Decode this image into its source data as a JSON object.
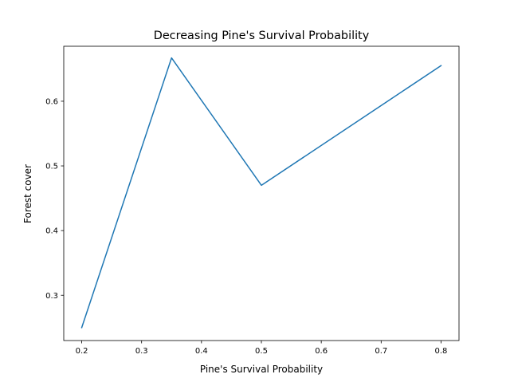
{
  "chart_data": {
    "type": "line",
    "title": "Decreasing Pine's Survival Probability",
    "xlabel": "Pine's Survival Probability",
    "ylabel": "Forest cover",
    "xlim": [
      0.17,
      0.83
    ],
    "ylim": [
      0.23,
      0.685
    ],
    "xticks": [
      0.2,
      0.3,
      0.4,
      0.5,
      0.6,
      0.7,
      0.8
    ],
    "xtick_labels": [
      "0.2",
      "0.3",
      "0.4",
      "0.5",
      "0.6",
      "0.7",
      "0.8"
    ],
    "yticks": [
      0.3,
      0.4,
      0.5,
      0.6
    ],
    "ytick_labels": [
      "0.3",
      "0.4",
      "0.5",
      "0.6"
    ],
    "grid": false,
    "series": [
      {
        "x": [
          0.2,
          0.35,
          0.5,
          0.8
        ],
        "y": [
          0.25,
          0.667,
          0.47,
          0.655
        ],
        "color": "#1f77b4"
      }
    ]
  }
}
